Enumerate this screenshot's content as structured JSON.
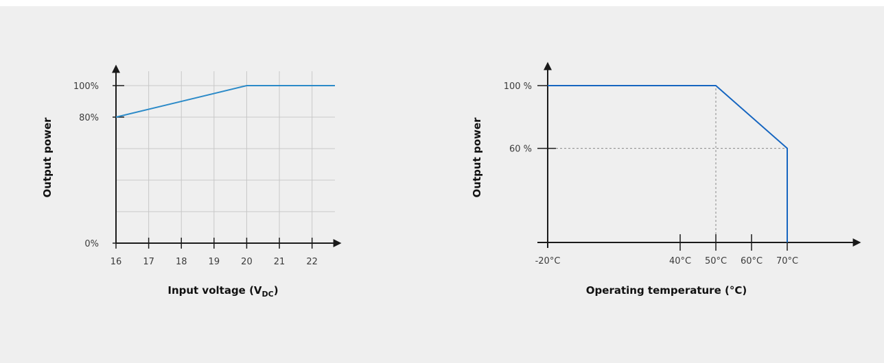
{
  "chart_data": [
    {
      "type": "line",
      "xlabel": "Input voltage (V",
      "xlabel_sub": "DC",
      "xlabel_suffix": ")",
      "ylabel": "Output power",
      "x_ticks": [
        "16",
        "17",
        "18",
        "19",
        "20",
        "21",
        "22"
      ],
      "y_ticks": [
        {
          "value": 0,
          "label": "0%"
        },
        {
          "value": 80,
          "label": "80%"
        },
        {
          "value": 100,
          "label": "100%"
        }
      ],
      "xlim": [
        16,
        22.7
      ],
      "ylim": [
        0,
        100
      ],
      "grid": true,
      "series": [
        {
          "x": [
            16,
            20,
            22.7
          ],
          "y": [
            80,
            100,
            100
          ],
          "color": "#2b8ac8"
        }
      ],
      "colors": {
        "line": "#2b8ac8",
        "axis": "#1a1a1a",
        "grid": "#c8c8c8"
      }
    },
    {
      "type": "line",
      "xlabel": "Operating temperature (°C)",
      "ylabel": "Output power",
      "x_ticks": [
        {
          "value": -20,
          "label": "-20°C"
        },
        {
          "value": 40,
          "label": "40°C"
        },
        {
          "value": 50,
          "label": "50°C"
        },
        {
          "value": 60,
          "label": "60°C"
        },
        {
          "value": 70,
          "label": "70°C"
        }
      ],
      "y_ticks": [
        {
          "value": 60,
          "label": "60 %"
        },
        {
          "value": 100,
          "label": "100 %"
        }
      ],
      "ylim": [
        0,
        100
      ],
      "grid": false,
      "series": [
        {
          "x": [
            -20,
            50,
            70,
            70
          ],
          "y": [
            100,
            100,
            60,
            0
          ],
          "color": "#1565c0"
        }
      ],
      "reference_lines": [
        {
          "x": 50,
          "y_from": 0,
          "y_to": 100
        },
        {
          "y": 60,
          "x_from": -20,
          "x_to": 70
        }
      ],
      "colors": {
        "line": "#1565c0",
        "axis": "#1a1a1a",
        "reference": "#888888"
      }
    }
  ]
}
